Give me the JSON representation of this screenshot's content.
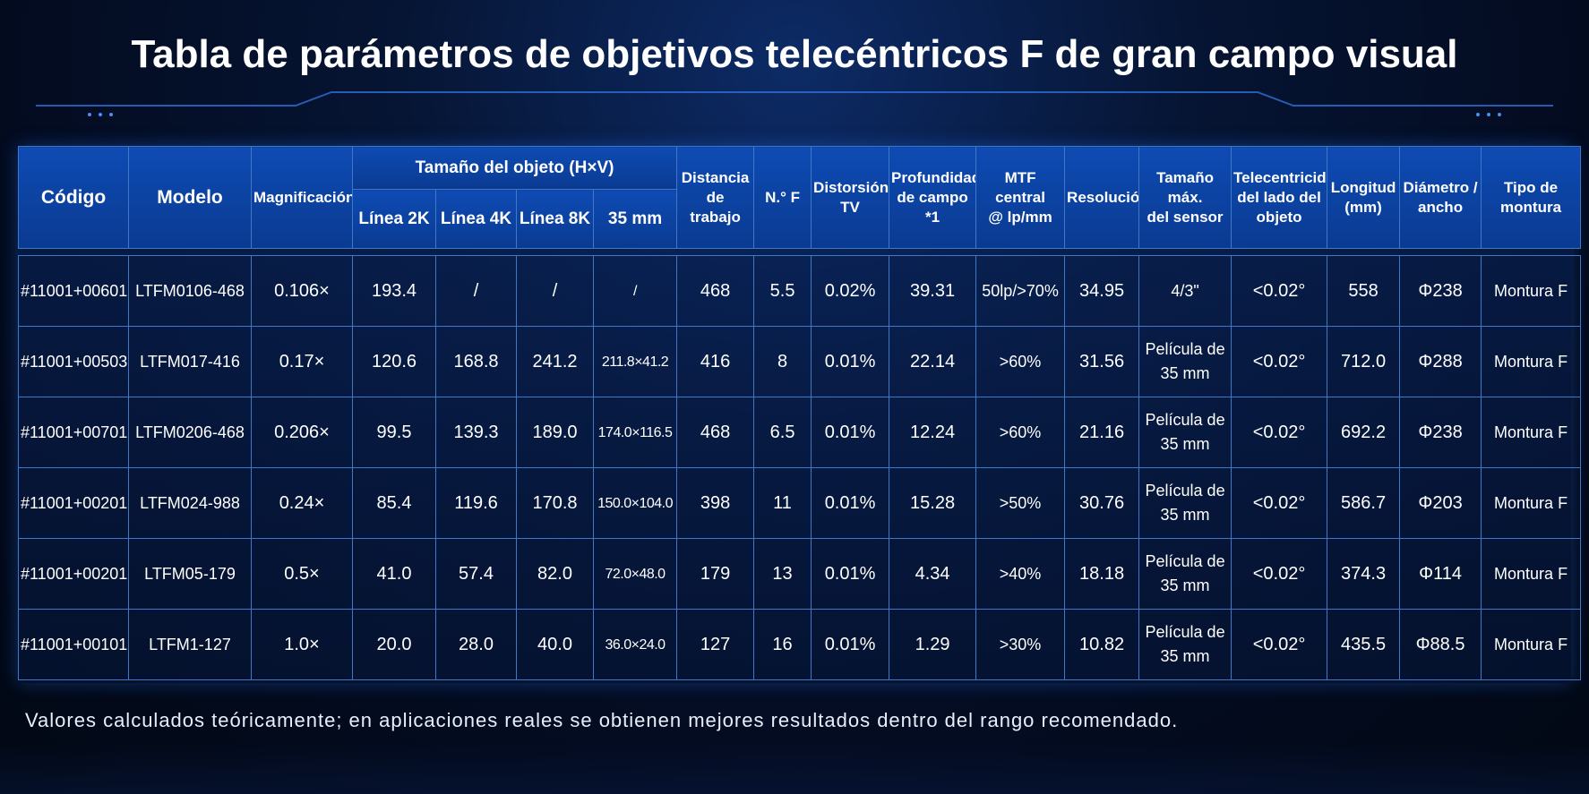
{
  "title": "Tabla de parámetros de objetivos telecéntricos F de gran campo visual",
  "headers": {
    "codigo": "Código",
    "modelo": "Modelo",
    "magnificacion": "Magnificación",
    "tamano_objeto": "Tamaño del objeto (H×V)",
    "linea2k": "Línea 2K",
    "linea4k": "Línea 4K",
    "linea8k": "Línea 8K",
    "mm35": "35 mm",
    "distancia": [
      "Distancia",
      "de trabajo"
    ],
    "nf": "N.° F",
    "distorsion": [
      "Distorsión",
      "TV"
    ],
    "profundidad": [
      "Profundidad",
      "de campo",
      "*1"
    ],
    "mtf": [
      "MTF central",
      "@ lp/mm"
    ],
    "resolucion": "Resolución",
    "tamano_sensor": [
      "Tamaño máx.",
      "del sensor"
    ],
    "telecentricidad": [
      "Telecentricidad",
      "del lado del",
      "objeto"
    ],
    "longitud": [
      "Longitud",
      "(mm)"
    ],
    "diametro": [
      "Diámetro /",
      "ancho"
    ],
    "montura": [
      "Tipo de",
      "montura"
    ]
  },
  "rows": [
    {
      "codigo": "#11001+00601",
      "modelo": "LTFM0106-468",
      "mag": "0.106×",
      "l2k": "193.4",
      "l4k": "/",
      "l8k": "/",
      "mm35": "/",
      "dist": "468",
      "nf": "5.5",
      "distor": "0.02%",
      "prof": "39.31",
      "mtf": "50lp/>70%",
      "res": "34.95",
      "sensor": [
        "4/3\""
      ],
      "tele": "<0.02°",
      "long": "558",
      "diam": "Φ238",
      "mont": "Montura F"
    },
    {
      "codigo": "#11001+00503",
      "modelo": "LTFM017-416",
      "mag": "0.17×",
      "l2k": "120.6",
      "l4k": "168.8",
      "l8k": "241.2",
      "mm35": "211.8×41.2",
      "dist": "416",
      "nf": "8",
      "distor": "0.01%",
      "prof": "22.14",
      "mtf": ">60%",
      "res": "31.56",
      "sensor": [
        "Película de",
        "35 mm"
      ],
      "tele": "<0.02°",
      "long": "712.0",
      "diam": "Φ288",
      "mont": "Montura F"
    },
    {
      "codigo": "#11001+00701",
      "modelo": "LTFM0206-468",
      "mag": "0.206×",
      "l2k": "99.5",
      "l4k": "139.3",
      "l8k": "189.0",
      "mm35": "174.0×116.5",
      "dist": "468",
      "nf": "6.5",
      "distor": "0.01%",
      "prof": "12.24",
      "mtf": ">60%",
      "res": "21.16",
      "sensor": [
        "Película de",
        "35 mm"
      ],
      "tele": "<0.02°",
      "long": "692.2",
      "diam": "Φ238",
      "mont": "Montura F"
    },
    {
      "codigo": "#11001+00201",
      "modelo": "LTFM024-988",
      "mag": "0.24×",
      "l2k": "85.4",
      "l4k": "119.6",
      "l8k": "170.8",
      "mm35": "150.0×104.0",
      "dist": "398",
      "nf": "11",
      "distor": "0.01%",
      "prof": "15.28",
      "mtf": ">50%",
      "res": "30.76",
      "sensor": [
        "Película de",
        "35 mm"
      ],
      "tele": "<0.02°",
      "long": "586.7",
      "diam": "Φ203",
      "mont": "Montura F"
    },
    {
      "codigo": "#11001+00201",
      "modelo": "LTFM05-179",
      "mag": "0.5×",
      "l2k": "41.0",
      "l4k": "57.4",
      "l8k": "82.0",
      "mm35": "72.0×48.0",
      "dist": "179",
      "nf": "13",
      "distor": "0.01%",
      "prof": "4.34",
      "mtf": ">40%",
      "res": "18.18",
      "sensor": [
        "Película de",
        "35 mm"
      ],
      "tele": "<0.02°",
      "long": "374.3",
      "diam": "Φ114",
      "mont": "Montura F"
    },
    {
      "codigo": "#11001+00101",
      "modelo": "LTFM1-127",
      "mag": "1.0×",
      "l2k": "20.0",
      "l4k": "28.0",
      "l8k": "40.0",
      "mm35": "36.0×24.0",
      "dist": "127",
      "nf": "16",
      "distor": "0.01%",
      "prof": "1.29",
      "mtf": ">30%",
      "res": "10.82",
      "sensor": [
        "Película de",
        "35 mm"
      ],
      "tele": "<0.02°",
      "long": "435.5",
      "diam": "Φ88.5",
      "mont": "Montura F"
    }
  ],
  "footnote": "Valores calculados teóricamente; en aplicaciones reales se obtienen mejores resultados dentro del rango recomendado.",
  "colors": {
    "header_bg": "#0e4bb3",
    "border": "#3f78c7",
    "page_bg": "#030b1f",
    "glow": "#2f8cff"
  }
}
